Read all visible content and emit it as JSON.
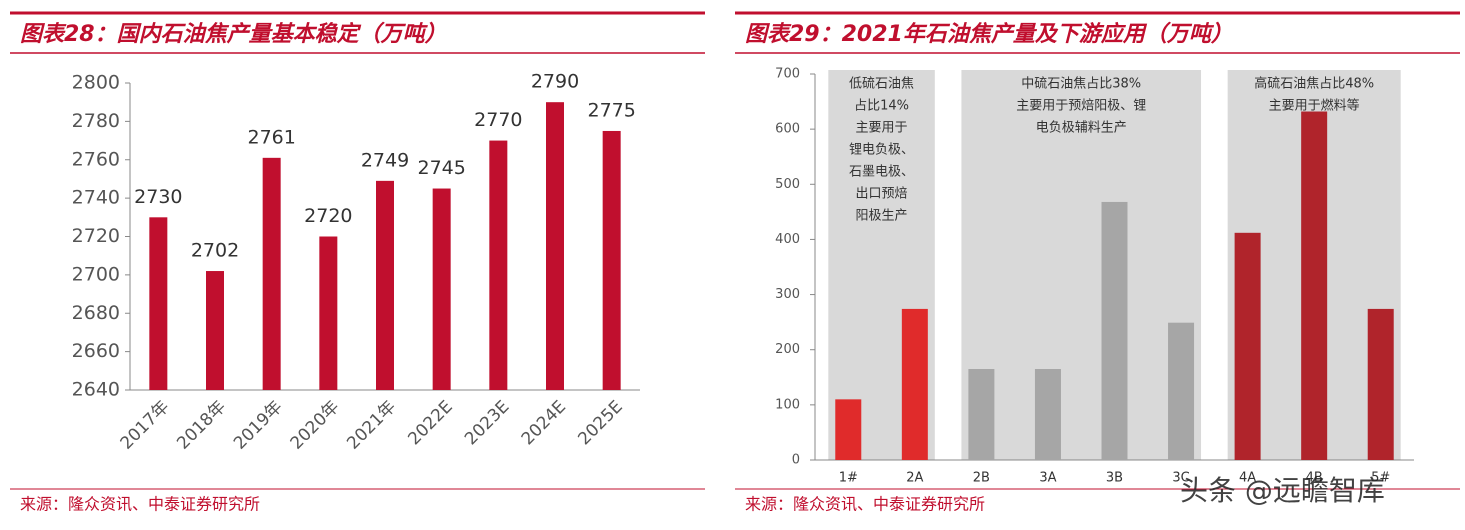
{
  "chart_data": [
    {
      "type": "bar",
      "title": "图表28：国内石油焦产量基本稳定（万吨）",
      "categories": [
        "2017年",
        "2018年",
        "2019年",
        "2020年",
        "2021年",
        "2022E",
        "2023E",
        "2024E",
        "2025E"
      ],
      "values": [
        2730,
        2702,
        2761,
        2720,
        2749,
        2745,
        2770,
        2790,
        2775
      ],
      "color": "#c00f2e",
      "data_labels": true,
      "ylim": [
        2640,
        2800
      ],
      "yticks": [
        2640,
        2660,
        2680,
        2700,
        2720,
        2740,
        2760,
        2780,
        2800
      ],
      "source": "来源：隆众资讯、中泰证券研究所"
    },
    {
      "type": "bar",
      "title": "图表29：2021年石油焦产量及下游应用（万吨）",
      "categories": [
        "1#",
        "2A",
        "2B",
        "3A",
        "3B",
        "3C",
        "4A",
        "4B",
        "5#"
      ],
      "values": [
        110,
        274,
        165,
        165,
        468,
        249,
        412,
        632,
        274
      ],
      "colors": [
        "#e02b2b",
        "#e02b2b",
        "#a6a6a6",
        "#a6a6a6",
        "#a6a6a6",
        "#a6a6a6",
        "#b0242b",
        "#b0242b",
        "#b0242b"
      ],
      "ylim": [
        0,
        700
      ],
      "yticks": [
        0,
        100,
        200,
        300,
        400,
        500,
        600,
        700
      ],
      "annotations": [
        [
          "低硫石油焦",
          "占比14%",
          "主要用于",
          "锂电负极、",
          "石墨电极、",
          "出口预焙",
          "阳极生产"
        ],
        [
          "中硫石油焦占比38%",
          "主要用于预焙阳极、锂",
          "电负极辅料生产"
        ],
        [
          "高硫石油焦占比48%",
          "主要用于燃料等"
        ]
      ],
      "source": "来源：隆众资讯、中泰证券研究所",
      "watermark": "头条 @远瞻智库"
    }
  ]
}
